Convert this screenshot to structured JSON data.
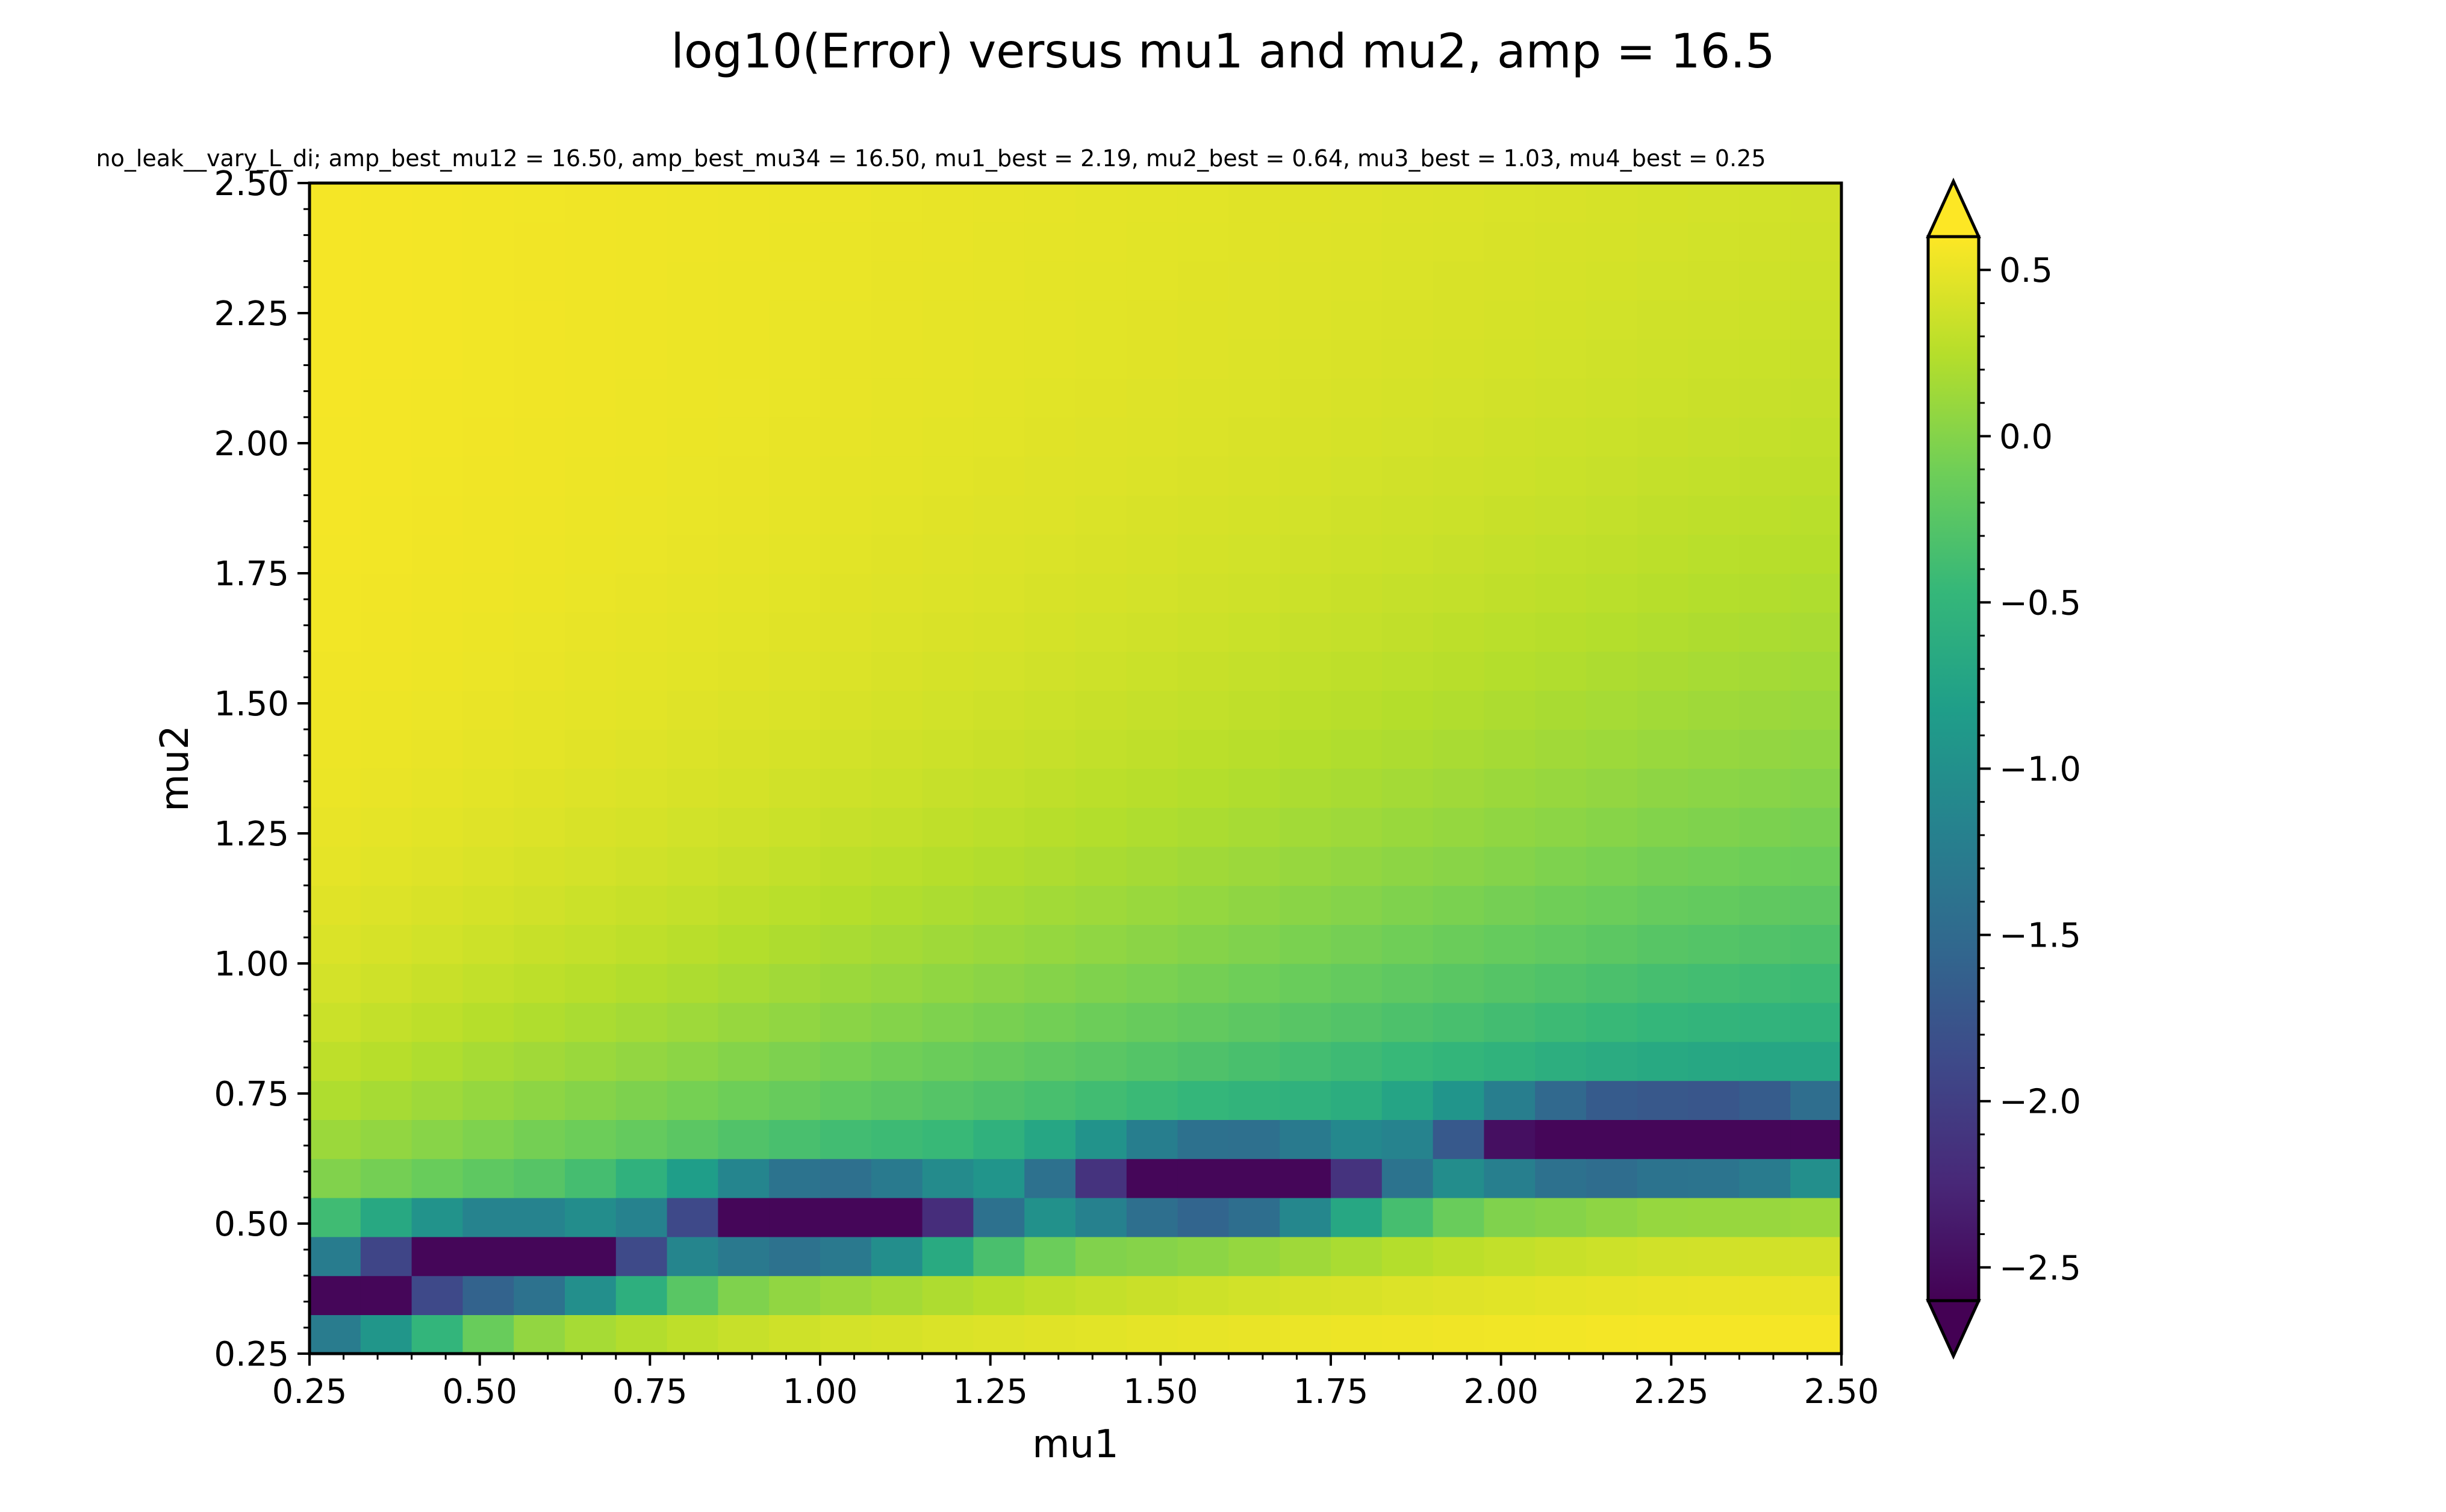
{
  "chart_data": {
    "type": "heatmap",
    "title": "log10(Error) versus mu1 and mu2, amp = 16.5",
    "subtitle": "no_leak__vary_L_di; amp_best_mu12 = 16.50, amp_best_mu34 = 16.50, mu1_best = 2.19, mu2_best = 0.64, mu3_best = 1.03, mu4_best = 0.25",
    "xlabel": "mu1",
    "ylabel": "mu2",
    "xlim": [
      0.25,
      2.5
    ],
    "ylim": [
      0.25,
      2.5
    ],
    "x_ticks": [
      "0.25",
      "0.50",
      "0.75",
      "1.00",
      "1.25",
      "1.50",
      "1.75",
      "2.00",
      "2.25",
      "2.50"
    ],
    "y_ticks": [
      "0.25",
      "0.50",
      "0.75",
      "1.00",
      "1.25",
      "1.50",
      "1.75",
      "2.00",
      "2.25",
      "2.50"
    ],
    "grid": false,
    "grid_cols": 30,
    "grid_rows": 30,
    "colormap": "viridis",
    "colorbar": {
      "vmin": -2.6,
      "vmax": 0.6,
      "extend": "both",
      "ticks": [
        0.5,
        0.0,
        -0.5,
        -1.0,
        -1.5,
        -2.0,
        -2.5
      ],
      "tick_labels": [
        "0.5",
        "0.0",
        "−0.5",
        "−1.0",
        "−1.5",
        "−2.0",
        "−2.5"
      ]
    },
    "valley_ridges": [
      {
        "mu2": 0.36,
        "mu1": [
          0.25,
          0.25
        ]
      },
      {
        "mu2": 0.43,
        "mu1": [
          0.53,
          0.53
        ]
      },
      {
        "mu2": 0.51,
        "mu1": [
          1.0,
          1.0
        ]
      },
      {
        "mu2": 0.58,
        "mu1": [
          1.59,
          1.59
        ]
      },
      {
        "mu2": 0.66,
        "mu1": [
          2.17,
          2.32
        ]
      }
    ],
    "colors": {
      "viridis_stops": [
        "#440154",
        "#482878",
        "#3e4989",
        "#31688e",
        "#26828e",
        "#1f9e89",
        "#35b779",
        "#6ece58",
        "#b5de2b",
        "#fde725"
      ]
    }
  }
}
